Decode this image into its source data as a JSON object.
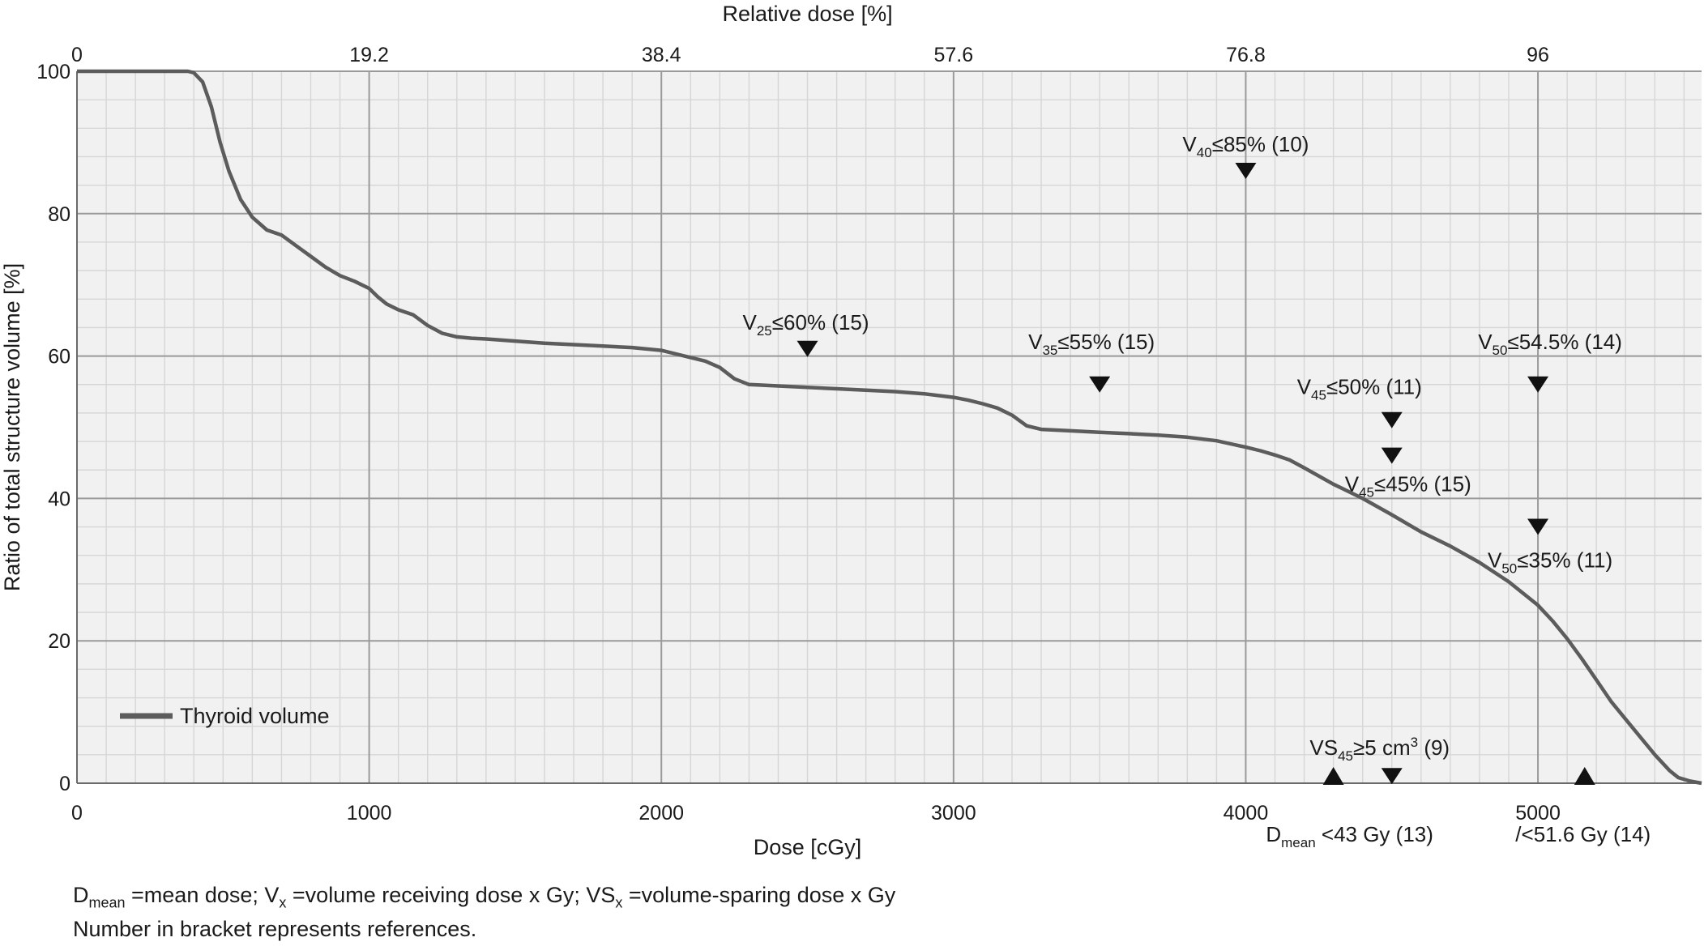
{
  "chart_data": {
    "type": "line",
    "xlabel": "Dose [cGy]",
    "x2label": "Relative dose [%]",
    "ylabel": "Ratio of total structure volume [%]",
    "xlim": [
      0,
      5560
    ],
    "ylim": [
      0,
      100
    ],
    "x_ticks": [
      0,
      1000,
      2000,
      3000,
      4000,
      5000
    ],
    "x_tick_labels": [
      "0",
      "1000",
      "2000",
      "3000",
      "4000",
      "5000"
    ],
    "x2_ticks": [
      0,
      1000,
      2000,
      3000,
      4000,
      5000
    ],
    "x2_tick_labels": [
      "0",
      "19.2",
      "38.4",
      "57.6",
      "76.8",
      "96"
    ],
    "y_ticks": [
      0,
      20,
      40,
      60,
      80,
      100
    ],
    "y_tick_labels": [
      "0",
      "20",
      "40",
      "60",
      "80",
      "100"
    ],
    "minor_grid": true,
    "legend_position": "bottom-left",
    "series": [
      {
        "name": "Thyroid volume",
        "color": "#5c5c5c",
        "x": [
          0,
          380,
          400,
          430,
          460,
          490,
          520,
          560,
          600,
          650,
          700,
          750,
          800,
          850,
          900,
          950,
          1000,
          1030,
          1060,
          1100,
          1150,
          1200,
          1250,
          1300,
          1350,
          1400,
          1500,
          1600,
          1700,
          1800,
          1900,
          2000,
          2050,
          2100,
          2150,
          2200,
          2250,
          2300,
          2400,
          2500,
          2600,
          2700,
          2800,
          2900,
          3000,
          3050,
          3100,
          3150,
          3200,
          3250,
          3300,
          3400,
          3500,
          3600,
          3700,
          3800,
          3900,
          4000,
          4050,
          4100,
          4150,
          4200,
          4300,
          4400,
          4500,
          4600,
          4700,
          4800,
          4900,
          5000,
          5050,
          5100,
          5150,
          5200,
          5250,
          5300,
          5350,
          5400,
          5450,
          5480,
          5520,
          5560
        ],
        "y": [
          100,
          100,
          99.8,
          98.5,
          95,
          90,
          86,
          82,
          79.5,
          77.7,
          77,
          75.5,
          74,
          72.5,
          71.3,
          70.5,
          69.5,
          68.3,
          67.3,
          66.5,
          65.8,
          64.3,
          63.2,
          62.7,
          62.5,
          62.4,
          62.1,
          61.8,
          61.6,
          61.4,
          61.2,
          60.8,
          60.3,
          59.8,
          59.3,
          58.4,
          56.8,
          56,
          55.8,
          55.6,
          55.4,
          55.2,
          55,
          54.7,
          54.2,
          53.8,
          53.3,
          52.7,
          51.7,
          50.2,
          49.7,
          49.5,
          49.3,
          49.1,
          48.9,
          48.6,
          48.1,
          47.2,
          46.7,
          46.1,
          45.4,
          44.3,
          42,
          40,
          37.7,
          35.3,
          33.3,
          31,
          28.3,
          25,
          22.8,
          20.3,
          17.5,
          14.5,
          11.5,
          9,
          6.5,
          4,
          1.8,
          0.8,
          0.3,
          0
        ]
      }
    ],
    "markers": [
      {
        "label_pre": "V",
        "label_sub": "40",
        "label_post": "≤85% (10)",
        "x": 4000,
        "y": 86,
        "shape": "triangle-down"
      },
      {
        "label_pre": "V",
        "label_sub": "25",
        "label_post": "≤60% (15)",
        "x": 2500,
        "y": 61,
        "shape": "triangle-down"
      },
      {
        "label_pre": "V",
        "label_sub": "35",
        "label_post": "≤55% (15)",
        "x": 3500,
        "y": 56,
        "shape": "triangle-down"
      },
      {
        "label_pre": "V",
        "label_sub": "50",
        "label_post": "≤54.5% (14)",
        "x": 5000,
        "y": 56,
        "shape": "triangle-down"
      },
      {
        "label_pre": "V",
        "label_sub": "45",
        "label_post": "≤50% (11)",
        "x": 4500,
        "y": 51,
        "shape": "triangle-down"
      },
      {
        "label_pre": "V",
        "label_sub": "45",
        "label_post": "≤45% (15)",
        "x": 4500,
        "y": 46,
        "shape": "triangle-down"
      },
      {
        "label_pre": "V",
        "label_sub": "50",
        "label_post": "≤35% (11)",
        "x": 5000,
        "y": 36,
        "shape": "triangle-down"
      },
      {
        "label_pre": "VS",
        "label_sub": "45",
        "label_post": "≥5 cm",
        "label_sup": "3",
        "label_tail": " (9)",
        "x": 4500,
        "y": 1,
        "shape": "triangle-down"
      },
      {
        "label_pre": "D",
        "label_sub": "mean",
        "label_post": " <43 Gy (13)",
        "x": 4300,
        "y": 0,
        "shape": "triangle-up"
      },
      {
        "label_pre": "",
        "label_sub": "",
        "label_post": "/<51.6 Gy (14)",
        "x": 5160,
        "y": 0,
        "shape": "triangle-up"
      }
    ]
  },
  "footnote": {
    "line1": {
      "d": "D",
      "d_sub": "mean",
      "d_text": " =mean dose; V",
      "v_sub": "x",
      "v_text": " =volume receiving dose x Gy; VS",
      "vs_sub": "x",
      "vs_text": " =volume-sparing dose x Gy"
    },
    "line2": "Number in bracket represents references."
  }
}
